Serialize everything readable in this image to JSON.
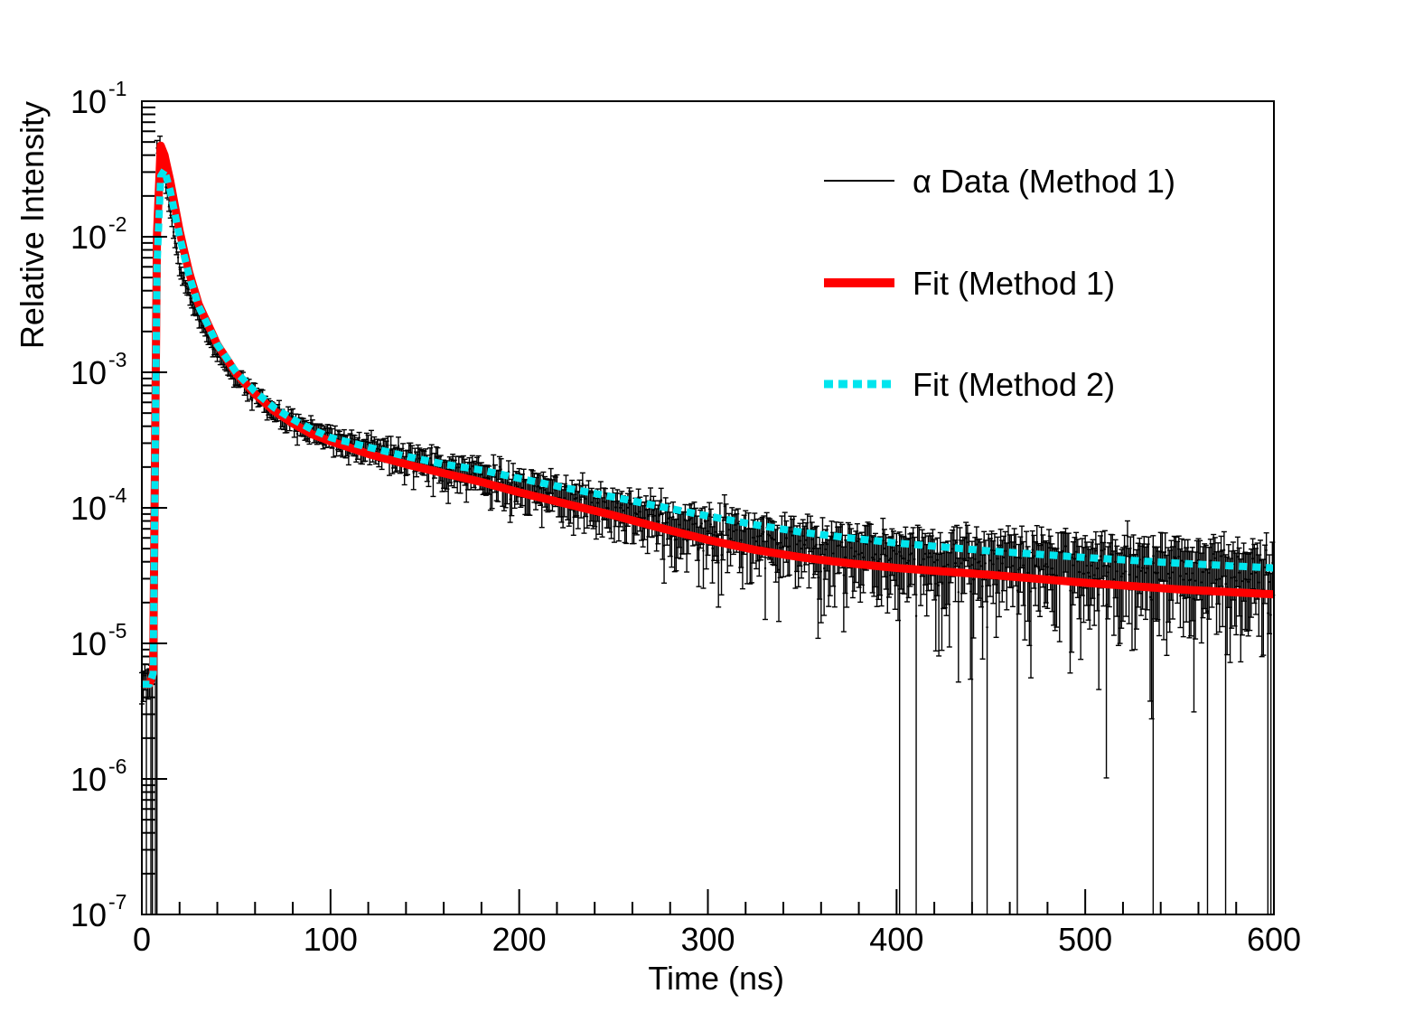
{
  "chart_data": {
    "type": "line",
    "title": "",
    "xlabel": "Time (ns)",
    "ylabel": "Relative Intensity",
    "xlim": [
      0,
      600
    ],
    "ylim": [
      1e-07,
      0.1
    ],
    "yscale": "log",
    "x_ticks": [
      0,
      100,
      200,
      300,
      400,
      500,
      600
    ],
    "y_ticks": [
      {
        "base": "10",
        "exp": "-1",
        "value": 0.1
      },
      {
        "base": "10",
        "exp": "-2",
        "value": 0.01
      },
      {
        "base": "10",
        "exp": "-3",
        "value": 0.001
      },
      {
        "base": "10",
        "exp": "-4",
        "value": 0.0001
      },
      {
        "base": "10",
        "exp": "-5",
        "value": 1e-05
      },
      {
        "base": "10",
        "exp": "-6",
        "value": 1e-06
      },
      {
        "base": "10",
        "exp": "-7",
        "value": 1e-07
      }
    ],
    "legend_position": "top-right",
    "series": [
      {
        "name": "α Data (Method 1)",
        "style": "data-with-error-bars",
        "color": "#000000",
        "x": [
          0,
          2,
          4,
          6,
          8,
          10,
          14,
          20,
          30,
          40,
          50,
          60,
          70,
          80,
          90,
          100,
          120,
          140,
          160,
          180,
          200,
          220,
          240,
          260,
          280,
          300,
          325,
          350,
          375,
          400,
          425,
          450,
          475,
          500,
          525,
          550,
          575,
          600
        ],
        "y": [
          5e-06,
          5e-06,
          5e-06,
          6e-06,
          0.04,
          0.04,
          0.02,
          0.006,
          0.0025,
          0.0014,
          0.00095,
          0.00068,
          0.00052,
          0.00043,
          0.00037,
          0.00033,
          0.00027,
          0.00023,
          0.0002,
          0.00017,
          0.00015,
          0.000125,
          0.000105,
          9e-05,
          7.8e-05,
          6.8e-05,
          6e-05,
          5.3e-05,
          5e-05,
          4.6e-05,
          4.3e-05,
          4.1e-05,
          3.9e-05,
          3.7e-05,
          3.5e-05,
          3.4e-05,
          3.2e-05,
          3e-05
        ]
      },
      {
        "name": "Fit (Method 1)",
        "style": "solid",
        "color": "#ff0000",
        "x": [
          0,
          4,
          6,
          8,
          10,
          12,
          15,
          20,
          25,
          30,
          40,
          50,
          60,
          70,
          80,
          90,
          100,
          120,
          140,
          160,
          180,
          200,
          225,
          250,
          275,
          300,
          325,
          350,
          375,
          400,
          450,
          500,
          550,
          600
        ],
        "y": [
          5e-06,
          5e-06,
          6e-06,
          0.01,
          0.047,
          0.04,
          0.026,
          0.011,
          0.0055,
          0.0032,
          0.0016,
          0.00098,
          0.00069,
          0.00052,
          0.00042,
          0.00035,
          0.00031,
          0.00025,
          0.00021,
          0.00018,
          0.000155,
          0.00013,
          0.000107,
          8.8e-05,
          7.1e-05,
          5.8e-05,
          4.9e-05,
          4.3e-05,
          3.9e-05,
          3.6e-05,
          3.2e-05,
          2.8e-05,
          2.5e-05,
          2.3e-05
        ]
      },
      {
        "name": "Fit (Method 2)",
        "style": "dotted",
        "color": "#00e5ee",
        "x": [
          0,
          4,
          6,
          8,
          10,
          12,
          15,
          20,
          25,
          30,
          40,
          50,
          60,
          70,
          80,
          90,
          100,
          120,
          140,
          160,
          180,
          200,
          225,
          250,
          275,
          300,
          325,
          350,
          375,
          400,
          450,
          500,
          550,
          600
        ],
        "y": [
          5e-06,
          5e-06,
          6e-06,
          0.006,
          0.028,
          0.031,
          0.022,
          0.01,
          0.0052,
          0.0031,
          0.0016,
          0.001,
          0.00072,
          0.00055,
          0.00045,
          0.00038,
          0.00033,
          0.00028,
          0.00024,
          0.00021,
          0.00019,
          0.000165,
          0.00014,
          0.00012,
          0.000102,
          8.7e-05,
          7.5e-05,
          6.6e-05,
          6e-05,
          5.5e-05,
          4.8e-05,
          4.3e-05,
          3.9e-05,
          3.6e-05
        ]
      }
    ]
  }
}
